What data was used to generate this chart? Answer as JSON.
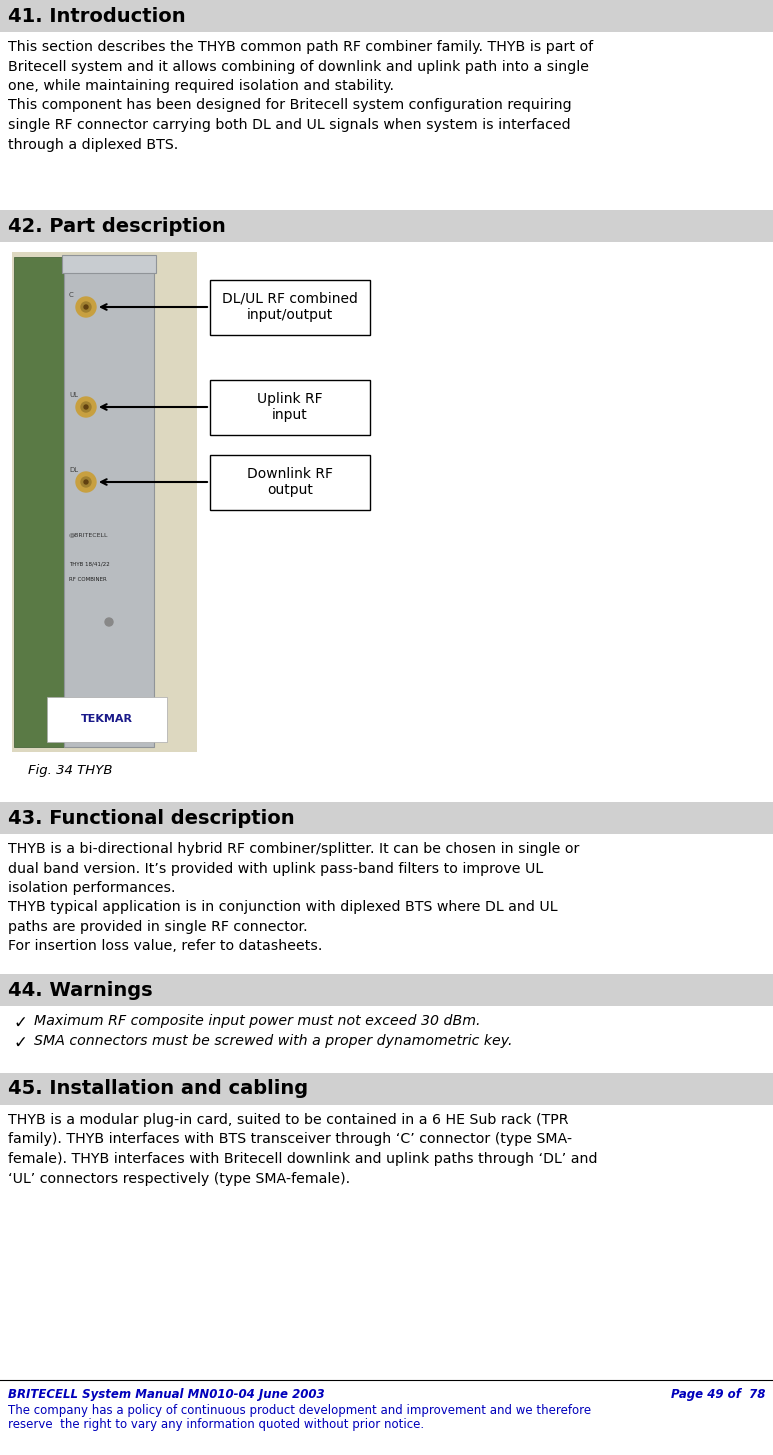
{
  "title_41": "41. Introduction",
  "title_42": "42. Part description",
  "title_43": "43. Functional description",
  "title_44": "44. Warnings",
  "title_45": "45. Installation and cabling",
  "section_header_color": "#d0d0d0",
  "bg_color": "#ffffff",
  "text_color_footer": "#0000bb",
  "intro_lines": [
    "This section describes the THYB common path RF combiner family. THYB is part of",
    "Britecell system and it allows combining of downlink and uplink path into a single",
    "one, while maintaining required isolation and stability.",
    "This component has been designed for Britecell system configuration requiring",
    "single RF connector carrying both DL and UL signals when system is interfaced",
    "through a diplexed BTS."
  ],
  "fig_caption": "Fig. 34 THYB",
  "box1_label": "DL/UL RF combined\ninput/output",
  "box2_label": "Uplink RF\ninput",
  "box3_label": "Downlink RF\noutput",
  "func_lines": [
    "THYB is a bi-directional hybrid RF combiner/splitter. It can be chosen in single or",
    "dual band version. It’s provided with uplink pass-band filters to improve UL",
    "isolation performances.",
    "THYB typical application is in conjunction with diplexed BTS where DL and UL",
    "paths are provided in single RF connector.",
    "For insertion loss value, refer to datasheets."
  ],
  "warn_text1": "  Maximum RF composite input power must not exceed 30 dBm.",
  "warn_text2": "  SMA connectors must be screwed with a proper dynamometric key.",
  "install_lines": [
    "THYB is a modular plug-in card, suited to be contained in a 6 HE Sub rack (TPR",
    "family). THYB interfaces with BTS transceiver through ‘C’ connector (type SMA-",
    "female). THYB interfaces with Britecell downlink and uplink paths through ‘DL’ and",
    "‘UL’ connectors respectively (type SMA-female)."
  ],
  "footer_left": "BRITECELL System Manual MN010-04 June 2003",
  "footer_right": "Page 49 of  78",
  "footer_sub1": "The company has a policy of continuous product development and improvement and we therefore",
  "footer_sub2": "reserve  the right to vary any information quoted without prior notice."
}
